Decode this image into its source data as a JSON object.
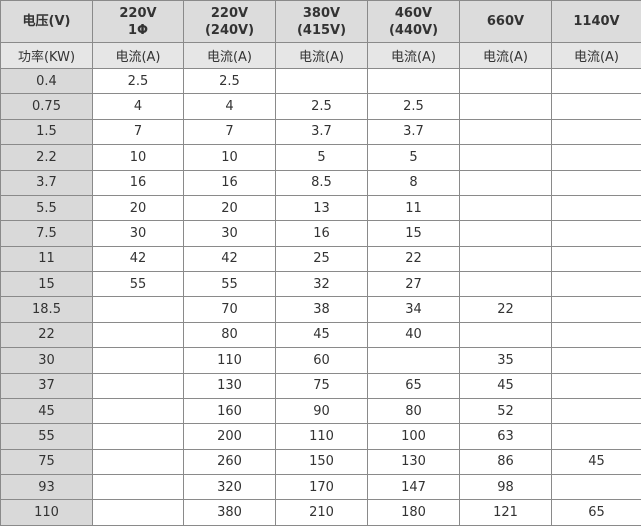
{
  "table": {
    "header": [
      [
        "电压(V)"
      ],
      [
        "220V",
        "1Φ"
      ],
      [
        "220V",
        "(240V)"
      ],
      [
        "380V",
        "(415V)"
      ],
      [
        "460V",
        "(440V)"
      ],
      [
        "660V"
      ],
      [
        "1140V"
      ]
    ],
    "subheader": [
      "功率(KW)",
      "电流(A)",
      "电流(A)",
      "电流(A)",
      "电流(A)",
      "电流(A)",
      "电流(A)"
    ],
    "rows": [
      [
        "0.4",
        "2.5",
        "2.5",
        null,
        null,
        null,
        null
      ],
      [
        "0.75",
        "4",
        "4",
        "2.5",
        "2.5",
        null,
        null
      ],
      [
        "1.5",
        "7",
        "7",
        "3.7",
        "3.7",
        null,
        null
      ],
      [
        "2.2",
        "10",
        "10",
        "5",
        "5",
        null,
        null
      ],
      [
        "3.7",
        "16",
        "16",
        "8.5",
        "8",
        null,
        null
      ],
      [
        "5.5",
        "20",
        "20",
        "13",
        "11",
        null,
        null
      ],
      [
        "7.5",
        "30",
        "30",
        "16",
        "15",
        null,
        null
      ],
      [
        "11",
        "42",
        "42",
        "25",
        "22",
        null,
        null
      ],
      [
        "15",
        "55",
        "55",
        "32",
        "27",
        null,
        null
      ],
      [
        "18.5",
        null,
        "70",
        "38",
        "34",
        "22",
        null
      ],
      [
        "22",
        null,
        "80",
        "45",
        "40",
        null,
        null
      ],
      [
        "30",
        null,
        "110",
        "60",
        null,
        "35",
        null
      ],
      [
        "37",
        null,
        "130",
        "75",
        "65",
        "45",
        null
      ],
      [
        "45",
        null,
        "160",
        "90",
        "80",
        "52",
        null
      ],
      [
        "55",
        null,
        "200",
        "110",
        "100",
        "63",
        null
      ],
      [
        "75",
        null,
        "260",
        "150",
        "130",
        "86",
        "45"
      ],
      [
        "93",
        null,
        "320",
        "170",
        "147",
        "98",
        null
      ],
      [
        "110",
        null,
        "380",
        "210",
        "180",
        "121",
        "65"
      ]
    ]
  }
}
